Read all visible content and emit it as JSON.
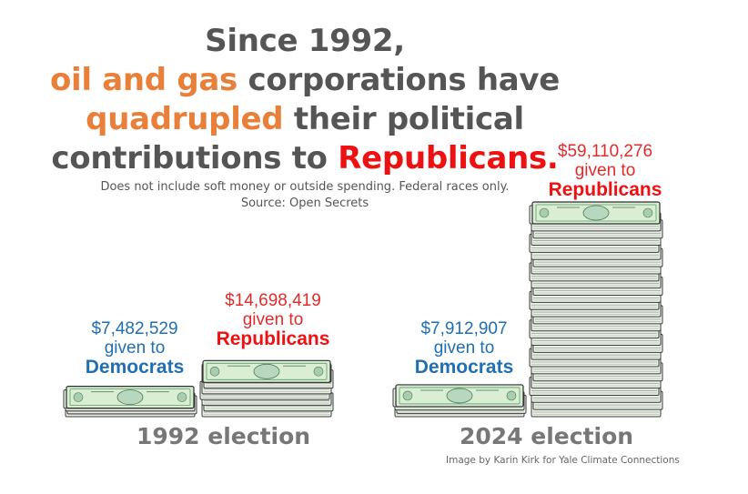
{
  "headline": {
    "line1": "Since 1992,",
    "line2_highlight": "oil and gas",
    "line2_rest": " corporations have",
    "line3_highlight": "quadrupled",
    "line3_rest": " their political",
    "line4_start": "contributions to ",
    "line4_highlight": "Republicans."
  },
  "subtitle": {
    "note": "Does not include soft money or outside spending. Federal races only.",
    "source": "Source: Open Secrets"
  },
  "credit": "Image by Karin Kirk for Yale Climate Connections",
  "colors": {
    "orange": "#e8803a",
    "republican_red": "#ee1111",
    "democrat_blue": "#1f6fb2",
    "gray_text": "#555555"
  },
  "chart_data": {
    "type": "bar",
    "title": "Since 1992, oil and gas corporations have quadrupled their political contributions to Republicans.",
    "categories": [
      "1992 election",
      "2024 election"
    ],
    "series": [
      {
        "name": "Democrats",
        "values": [
          7482529,
          7912907
        ],
        "labels": [
          "$7,482,529",
          "$7,912,907"
        ]
      },
      {
        "name": "Republicans",
        "values": [
          14698419,
          59110276
        ],
        "labels": [
          "$14,698,419",
          "$59,110,276"
        ]
      }
    ],
    "given_to_text": "given to",
    "xlabel": "",
    "ylabel": "",
    "unit": "USD"
  }
}
